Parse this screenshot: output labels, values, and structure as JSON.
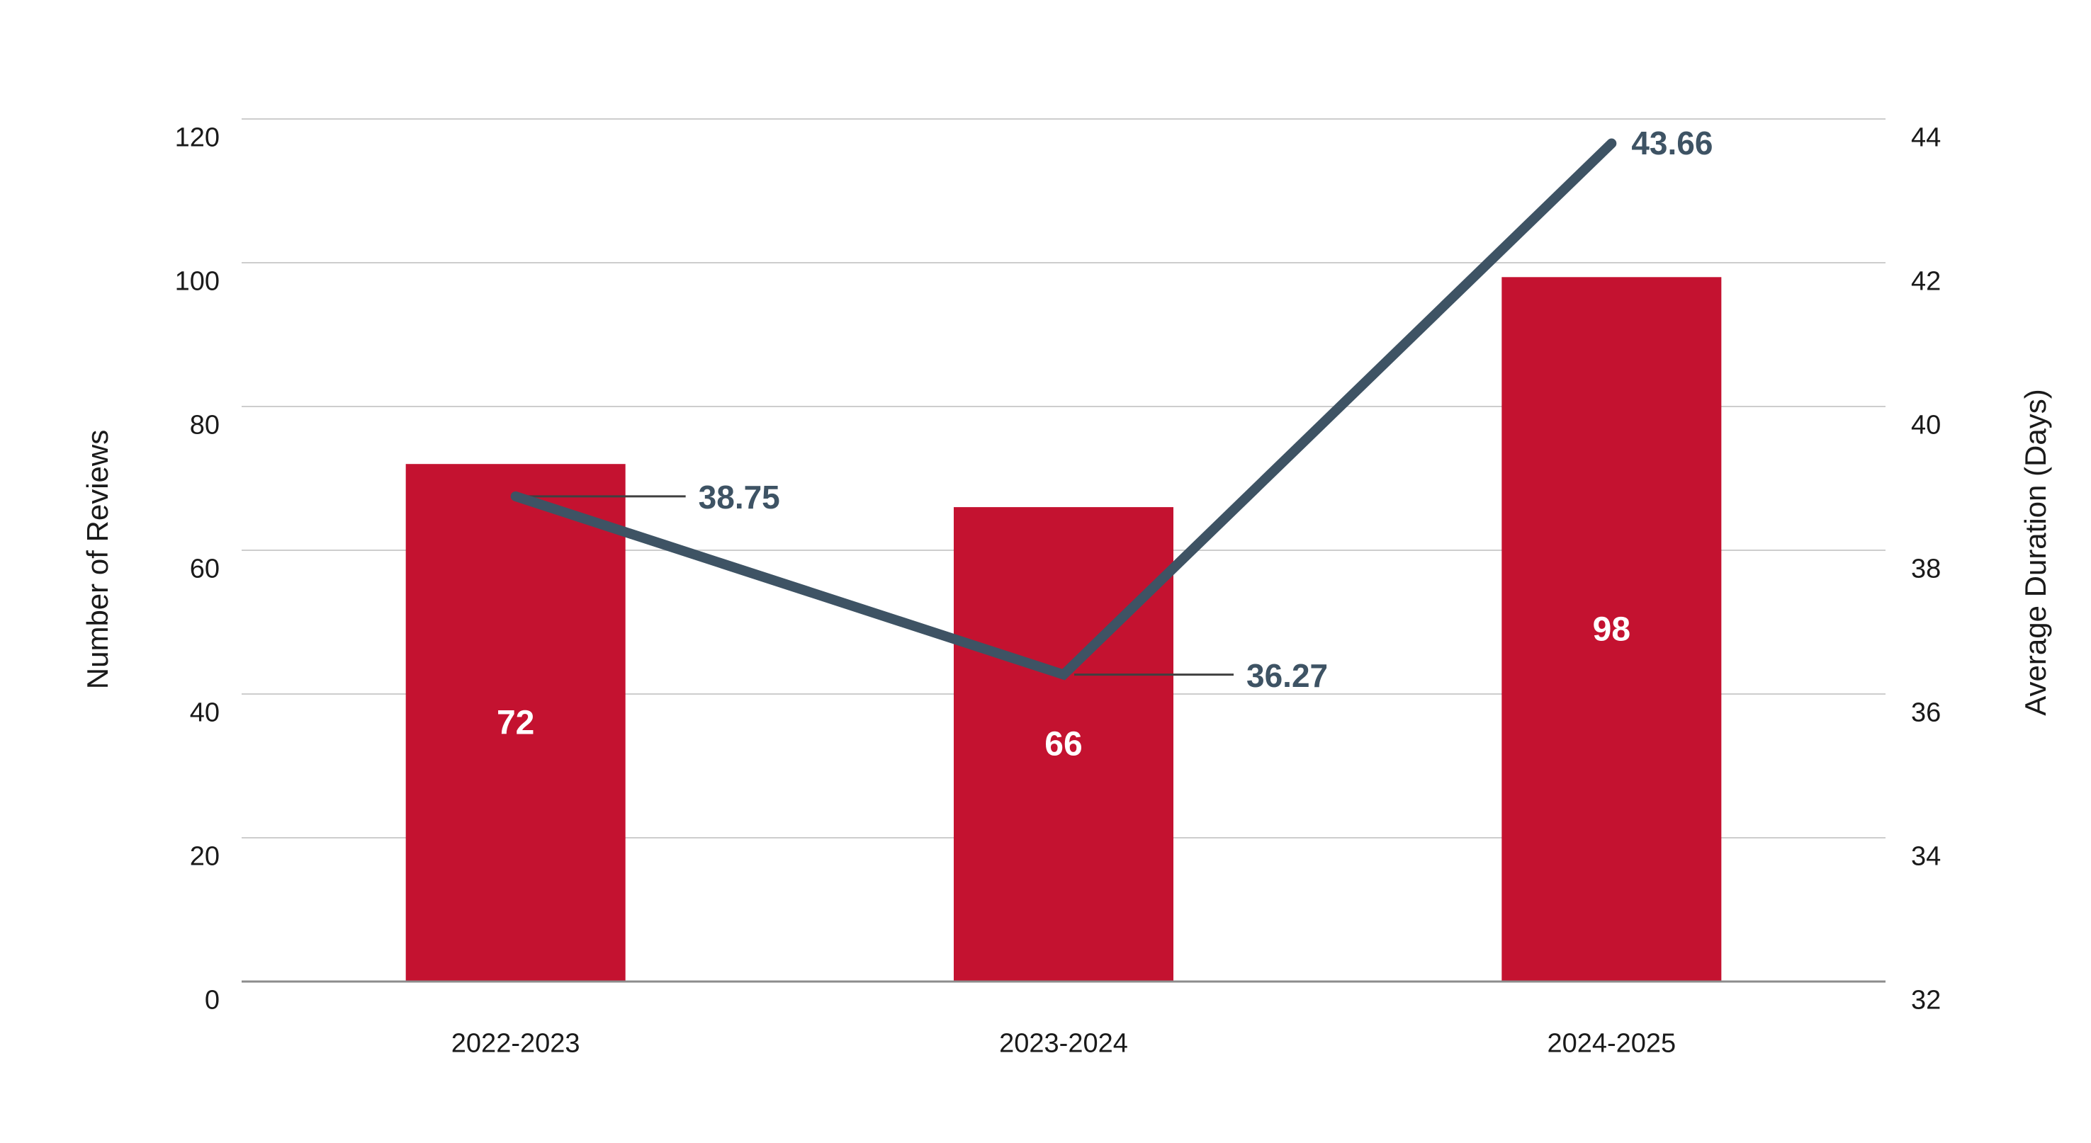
{
  "chart_data": {
    "type": "bar+line combo",
    "title": "",
    "categories": [
      "2022-2023",
      "2023-2024",
      "2024-2025"
    ],
    "series": [
      {
        "name": "reviews",
        "type": "bar",
        "axis": "left",
        "values": [
          72,
          66,
          98
        ],
        "labels": [
          "72",
          "66",
          "98"
        ],
        "color": "#C41230"
      },
      {
        "name": "duration",
        "type": "line",
        "axis": "right",
        "values": [
          38.75,
          36.27,
          43.66
        ],
        "labels": [
          "38.75",
          "36.27",
          "43.66"
        ],
        "leaders": [
          true,
          true,
          false
        ],
        "color": "#3E5364"
      }
    ],
    "ylabel_left": "Number of Reviews",
    "ylabel_right": "Average Duration (Days)",
    "left_axis": {
      "min": 0,
      "max": 120,
      "step": 20,
      "ticks": [
        "0",
        "20",
        "40",
        "60",
        "80",
        "100",
        "120"
      ]
    },
    "right_axis": {
      "min": 32,
      "max": 44,
      "step": 2,
      "ticks": [
        "32",
        "34",
        "36",
        "38",
        "40",
        "42",
        "44"
      ]
    },
    "grid": true,
    "legend": "none",
    "colors": {
      "background": "#ffffff",
      "gridline": "#cdcdcd",
      "baseline": "#8c8c8c",
      "bar": "#C41230",
      "line": "#3E5364",
      "leader": "#404040",
      "text": "#1a1a1a",
      "bar_label_text": "#ffffff"
    }
  }
}
